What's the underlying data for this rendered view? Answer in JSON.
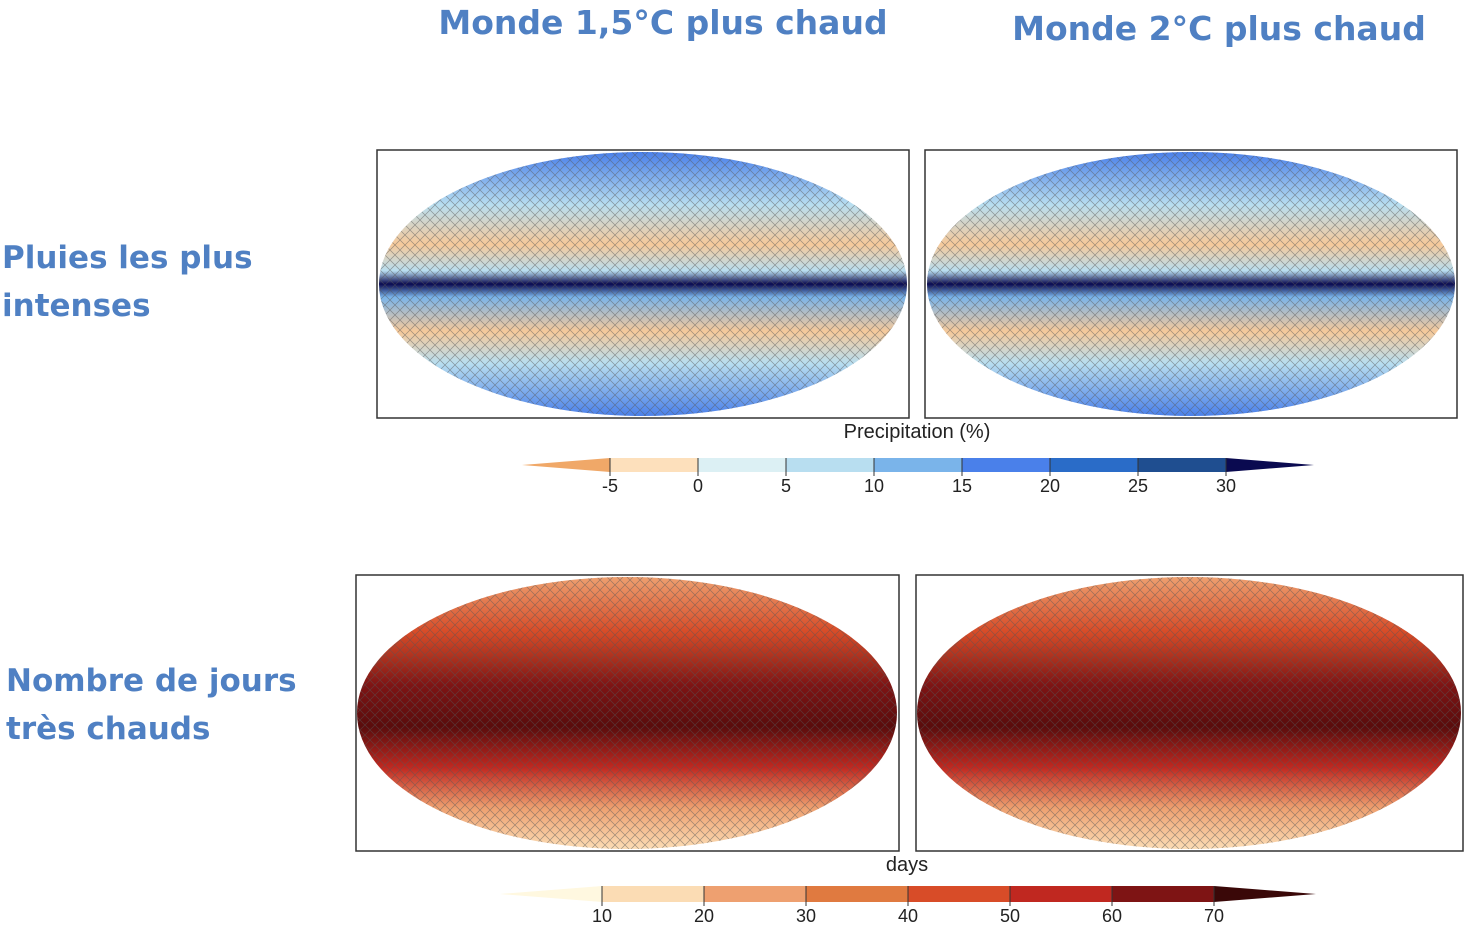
{
  "header": {
    "columns": [
      "Monde 1,5°C plus chaud",
      "Monde 2°C plus chaud"
    ]
  },
  "rows": [
    {
      "label": "Pluies les plus intenses",
      "colorbar": {
        "label": "Precipitation (%)",
        "ticks": [
          -5,
          0,
          5,
          10,
          15,
          20,
          25,
          30
        ],
        "colors": [
          "#f0a868",
          "#fde0bc",
          "#dcf0f4",
          "#b8def0",
          "#7ab4ea",
          "#4a80ea",
          "#2a6cc8",
          "#1f4e90",
          "#0a0a50"
        ]
      }
    },
    {
      "label": "Nombre de jours très chauds",
      "colorbar": {
        "label": "days",
        "ticks": [
          10,
          20,
          30,
          40,
          50,
          60,
          70
        ],
        "colors": [
          "#fff8e0",
          "#fbdcb4",
          "#eea070",
          "#e07a40",
          "#d84c28",
          "#c02820",
          "#7e1414",
          "#3a0808"
        ]
      }
    }
  ]
}
